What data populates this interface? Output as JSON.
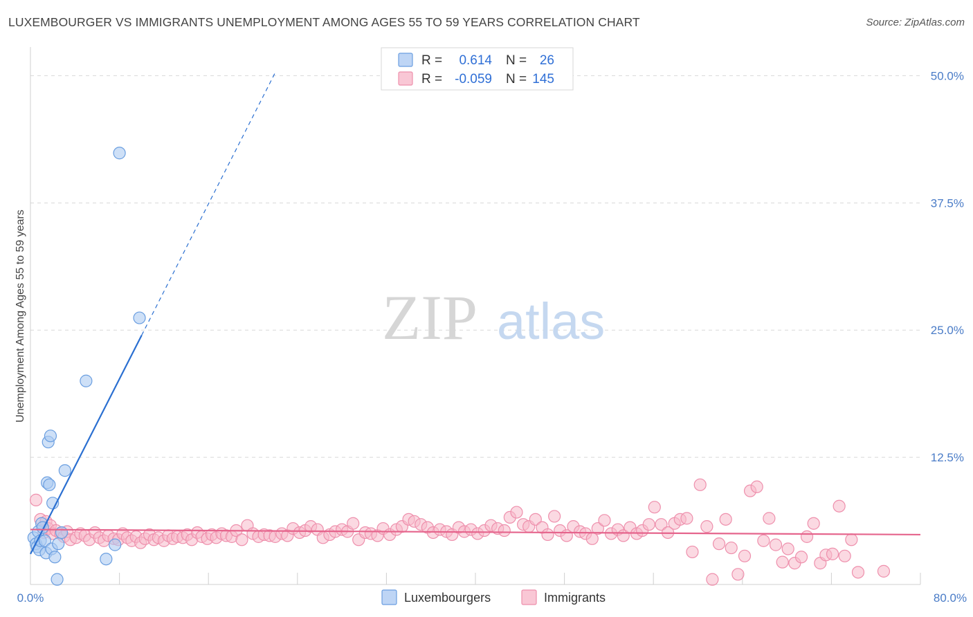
{
  "title": "LUXEMBOURGER VS IMMIGRANTS UNEMPLOYMENT AMONG AGES 55 TO 59 YEARS CORRELATION CHART",
  "source": "Source: ZipAtlas.com",
  "watermark": {
    "zip": "ZIP",
    "atlas": "atlas"
  },
  "colors": {
    "lux_fill": "#aecbf2",
    "lux_stroke": "#6a9ee0",
    "lux_line": "#2a6fd1",
    "imm_fill": "#f7b9cb",
    "imm_stroke": "#ee8fac",
    "imm_line": "#e5648c",
    "grid": "#d8d8d8",
    "axis_text": "#4a7cc7"
  },
  "legend": {
    "row1": {
      "r_label": "R =",
      "r_value": "0.614",
      "n_label": "N =",
      "n_value": "26"
    },
    "row2": {
      "r_label": "R =",
      "r_value": "-0.059",
      "n_label": "N =",
      "n_value": "145"
    }
  },
  "chart_data": {
    "type": "scatter",
    "xlabel": "",
    "ylabel": "Unemployment Among Ages 55 to 59 years",
    "xlim": [
      0,
      80
    ],
    "ylim": [
      0,
      52
    ],
    "x_tick_labels": [
      "0.0%",
      "80.0%"
    ],
    "y_ticks": [
      12.5,
      25.0,
      37.5,
      50.0
    ],
    "y_tick_labels": [
      "12.5%",
      "25.0%",
      "37.5%",
      "50.0%"
    ],
    "grid": true,
    "legend_position": "bottom",
    "series": [
      {
        "name": "Luxembourgers",
        "r": 0.614,
        "n": 26,
        "trend": {
          "x_start": 0.0,
          "y_start": 3.0,
          "x_end_solid": 10.0,
          "x_end_dashed": 22.0,
          "slope": 2.15
        },
        "points": [
          [
            0.3,
            4.6
          ],
          [
            0.5,
            4.0
          ],
          [
            0.6,
            3.7
          ],
          [
            0.7,
            5.2
          ],
          [
            0.8,
            3.4
          ],
          [
            0.9,
            4.3
          ],
          [
            1.0,
            6.0
          ],
          [
            1.1,
            5.6
          ],
          [
            1.3,
            4.3
          ],
          [
            1.4,
            3.1
          ],
          [
            1.5,
            10.0
          ],
          [
            1.6,
            14.0
          ],
          [
            1.7,
            9.8
          ],
          [
            1.8,
            14.6
          ],
          [
            1.9,
            3.5
          ],
          [
            2.0,
            8.0
          ],
          [
            2.2,
            2.7
          ],
          [
            2.4,
            0.5
          ],
          [
            2.5,
            4.0
          ],
          [
            2.8,
            5.1
          ],
          [
            3.1,
            11.2
          ],
          [
            5.0,
            20.0
          ],
          [
            6.8,
            2.5
          ],
          [
            7.6,
            3.9
          ],
          [
            8.0,
            42.4
          ],
          [
            9.8,
            26.2
          ]
        ]
      },
      {
        "name": "Immigrants",
        "r": -0.059,
        "n": 145,
        "trend": {
          "x_start": 0.0,
          "y_start": 5.4,
          "x_end": 80.0,
          "y_end": 4.9
        },
        "points": [
          [
            0.5,
            8.3
          ],
          [
            0.9,
            6.4
          ],
          [
            1.2,
            5.1
          ],
          [
            1.4,
            6.2
          ],
          [
            1.6,
            5.5
          ],
          [
            1.8,
            5.8
          ],
          [
            2.0,
            5.0
          ],
          [
            2.3,
            5.3
          ],
          [
            2.7,
            5.0
          ],
          [
            3.0,
            4.7
          ],
          [
            3.3,
            5.2
          ],
          [
            3.6,
            4.4
          ],
          [
            4.1,
            4.6
          ],
          [
            4.5,
            5.0
          ],
          [
            4.9,
            4.8
          ],
          [
            5.3,
            4.4
          ],
          [
            5.8,
            5.1
          ],
          [
            6.2,
            4.6
          ],
          [
            6.6,
            4.3
          ],
          [
            7.0,
            4.8
          ],
          [
            7.5,
            4.5
          ],
          [
            7.9,
            4.4
          ],
          [
            8.3,
            5.0
          ],
          [
            8.7,
            4.6
          ],
          [
            9.1,
            4.3
          ],
          [
            9.5,
            4.7
          ],
          [
            9.9,
            4.1
          ],
          [
            10.3,
            4.5
          ],
          [
            10.7,
            4.9
          ],
          [
            11.1,
            4.4
          ],
          [
            11.5,
            4.6
          ],
          [
            12.0,
            4.3
          ],
          [
            12.4,
            4.8
          ],
          [
            12.8,
            4.5
          ],
          [
            13.2,
            4.7
          ],
          [
            13.7,
            4.6
          ],
          [
            14.1,
            4.9
          ],
          [
            14.5,
            4.4
          ],
          [
            15.0,
            5.1
          ],
          [
            15.4,
            4.7
          ],
          [
            15.9,
            4.5
          ],
          [
            16.3,
            4.9
          ],
          [
            16.7,
            4.6
          ],
          [
            17.2,
            5.0
          ],
          [
            17.6,
            4.8
          ],
          [
            18.1,
            4.7
          ],
          [
            18.5,
            5.3
          ],
          [
            19.0,
            4.4
          ],
          [
            19.5,
            5.8
          ],
          [
            20.0,
            5.0
          ],
          [
            20.5,
            4.7
          ],
          [
            21.0,
            4.9
          ],
          [
            21.5,
            4.8
          ],
          [
            22.0,
            4.7
          ],
          [
            22.6,
            5.0
          ],
          [
            23.1,
            4.8
          ],
          [
            23.6,
            5.5
          ],
          [
            24.2,
            5.1
          ],
          [
            24.7,
            5.3
          ],
          [
            25.2,
            5.7
          ],
          [
            25.8,
            5.4
          ],
          [
            26.3,
            4.6
          ],
          [
            26.9,
            4.9
          ],
          [
            27.4,
            5.2
          ],
          [
            28.0,
            5.4
          ],
          [
            28.5,
            5.2
          ],
          [
            29.0,
            6.0
          ],
          [
            29.5,
            4.4
          ],
          [
            30.1,
            5.1
          ],
          [
            30.6,
            5.0
          ],
          [
            31.2,
            4.8
          ],
          [
            31.7,
            5.5
          ],
          [
            32.3,
            4.9
          ],
          [
            32.9,
            5.4
          ],
          [
            33.4,
            5.7
          ],
          [
            34.0,
            6.4
          ],
          [
            34.5,
            6.2
          ],
          [
            35.1,
            5.9
          ],
          [
            35.7,
            5.6
          ],
          [
            36.2,
            5.1
          ],
          [
            36.8,
            5.4
          ],
          [
            37.4,
            5.2
          ],
          [
            37.9,
            4.9
          ],
          [
            38.5,
            5.6
          ],
          [
            39.0,
            5.2
          ],
          [
            39.6,
            5.4
          ],
          [
            40.2,
            5.0
          ],
          [
            40.8,
            5.3
          ],
          [
            41.4,
            5.8
          ],
          [
            42.0,
            5.5
          ],
          [
            42.6,
            5.3
          ],
          [
            43.1,
            6.6
          ],
          [
            43.7,
            7.1
          ],
          [
            44.3,
            5.9
          ],
          [
            44.8,
            5.7
          ],
          [
            45.4,
            6.4
          ],
          [
            46.0,
            5.6
          ],
          [
            46.5,
            4.9
          ],
          [
            47.1,
            6.7
          ],
          [
            47.6,
            5.3
          ],
          [
            48.2,
            4.8
          ],
          [
            48.8,
            5.7
          ],
          [
            49.4,
            5.2
          ],
          [
            49.9,
            5.0
          ],
          [
            50.5,
            4.5
          ],
          [
            51.0,
            5.5
          ],
          [
            51.6,
            6.3
          ],
          [
            52.2,
            5.0
          ],
          [
            52.8,
            5.4
          ],
          [
            53.3,
            4.8
          ],
          [
            53.9,
            5.6
          ],
          [
            54.5,
            5.0
          ],
          [
            55.0,
            5.3
          ],
          [
            55.6,
            5.9
          ],
          [
            56.1,
            7.6
          ],
          [
            56.7,
            5.9
          ],
          [
            57.3,
            5.1
          ],
          [
            57.9,
            6.0
          ],
          [
            58.4,
            6.4
          ],
          [
            59.0,
            6.5
          ],
          [
            59.5,
            3.2
          ],
          [
            60.2,
            9.8
          ],
          [
            60.8,
            5.7
          ],
          [
            61.3,
            0.5
          ],
          [
            61.9,
            4.0
          ],
          [
            62.5,
            6.4
          ],
          [
            63.0,
            3.6
          ],
          [
            63.6,
            1.0
          ],
          [
            64.2,
            2.8
          ],
          [
            64.7,
            9.2
          ],
          [
            65.3,
            9.6
          ],
          [
            65.9,
            4.3
          ],
          [
            66.4,
            6.5
          ],
          [
            67.0,
            3.9
          ],
          [
            67.6,
            2.2
          ],
          [
            68.1,
            3.5
          ],
          [
            68.7,
            2.1
          ],
          [
            69.3,
            2.7
          ],
          [
            69.8,
            4.7
          ],
          [
            70.4,
            6.0
          ],
          [
            71.0,
            2.1
          ],
          [
            71.5,
            2.9
          ],
          [
            72.1,
            3.0
          ],
          [
            72.7,
            7.7
          ],
          [
            73.2,
            2.8
          ],
          [
            73.8,
            4.4
          ],
          [
            74.4,
            1.2
          ],
          [
            76.7,
            1.3
          ]
        ]
      }
    ]
  },
  "bottom_legend": {
    "lux_label": "Luxembourgers",
    "imm_label": "Immigrants"
  }
}
